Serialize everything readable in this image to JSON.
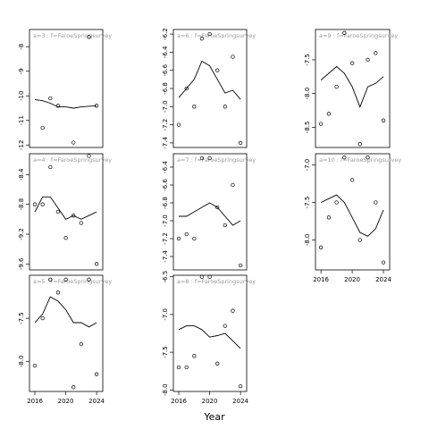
{
  "chart_data": {
    "type": "scatter",
    "xlabel": "Year",
    "x_ticks": [
      2016,
      2020,
      2024
    ],
    "panels": [
      {
        "title": "a=3 : f=FaroeSpringsurvey",
        "ylim": [
          -12.1,
          -7.3
        ],
        "y_ticks": [
          -8,
          -9,
          -10,
          -11,
          -12
        ],
        "points": [
          [
            2017,
            -11.3
          ],
          [
            2018,
            -10.1
          ],
          [
            2019,
            -10.4
          ],
          [
            2021,
            -11.9
          ],
          [
            2023,
            -7.6
          ],
          [
            2024,
            -10.4
          ]
        ],
        "fit": [
          [
            2016,
            -10.15
          ],
          [
            2017,
            -10.2
          ],
          [
            2018,
            -10.3
          ],
          [
            2019,
            -10.45
          ],
          [
            2020,
            -10.45
          ],
          [
            2021,
            -10.5
          ],
          [
            2022,
            -10.45
          ],
          [
            2024,
            -10.4
          ]
        ]
      },
      {
        "title": "a=6 : f=FaroeSpringsurvey",
        "ylim": [
          -7.45,
          -6.15
        ],
        "y_ticks": [
          -6.2,
          -6.4,
          -6.6,
          -6.8,
          -7.0,
          -7.2,
          -7.4
        ],
        "points": [
          [
            2016,
            -7.2
          ],
          [
            2017,
            -6.8
          ],
          [
            2018,
            -7.0
          ],
          [
            2019,
            -6.25
          ],
          [
            2020,
            -6.2
          ],
          [
            2021,
            -6.6
          ],
          [
            2022,
            -7.0
          ],
          [
            2023,
            -6.45
          ],
          [
            2024,
            -7.4
          ]
        ],
        "fit": [
          [
            2016,
            -6.9
          ],
          [
            2017,
            -6.8
          ],
          [
            2018,
            -6.7
          ],
          [
            2019,
            -6.5
          ],
          [
            2020,
            -6.55
          ],
          [
            2021,
            -6.7
          ],
          [
            2022,
            -6.85
          ],
          [
            2023,
            -6.82
          ],
          [
            2024,
            -6.92
          ]
        ]
      },
      {
        "title": "a=9 : f=FaroeSpringsurvey",
        "ylim": [
          -8.8,
          -7.05
        ],
        "y_ticks": [
          -7.5,
          -8.0,
          -8.5
        ],
        "points": [
          [
            2016,
            -8.45
          ],
          [
            2017,
            -8.3
          ],
          [
            2018,
            -7.9
          ],
          [
            2019,
            -7.1
          ],
          [
            2020,
            -7.55
          ],
          [
            2021,
            -8.75
          ],
          [
            2022,
            -7.5
          ],
          [
            2023,
            -7.4
          ],
          [
            2024,
            -8.4
          ]
        ],
        "fit": [
          [
            2016,
            -7.8
          ],
          [
            2017,
            -7.7
          ],
          [
            2018,
            -7.6
          ],
          [
            2019,
            -7.7
          ],
          [
            2020,
            -7.9
          ],
          [
            2021,
            -8.2
          ],
          [
            2022,
            -7.9
          ],
          [
            2023,
            -7.85
          ],
          [
            2024,
            -7.75
          ]
        ]
      },
      {
        "title": "a=4 : f=FaroeSpringsurvey",
        "ylim": [
          -9.68,
          -8.12
        ],
        "y_ticks": [
          -8.4,
          -8.8,
          -9.2,
          -9.6
        ],
        "points": [
          [
            2016,
            -8.8
          ],
          [
            2017,
            -8.8
          ],
          [
            2018,
            -8.3
          ],
          [
            2019,
            -8.9
          ],
          [
            2020,
            -9.25
          ],
          [
            2021,
            -8.95
          ],
          [
            2022,
            -9.05
          ],
          [
            2023,
            -8.15
          ],
          [
            2024,
            -9.6
          ]
        ],
        "fit": [
          [
            2016,
            -8.9
          ],
          [
            2017,
            -8.7
          ],
          [
            2018,
            -8.7
          ],
          [
            2019,
            -8.85
          ],
          [
            2020,
            -9.0
          ],
          [
            2021,
            -8.95
          ],
          [
            2022,
            -9.0
          ],
          [
            2023,
            -8.95
          ],
          [
            2024,
            -8.9
          ]
        ]
      },
      {
        "title": "a=7 : f=FaroeSpringsurvey",
        "ylim": [
          -7.55,
          -6.25
        ],
        "y_ticks": [
          -6.4,
          -6.6,
          -6.8,
          -7.0,
          -7.2,
          -7.4
        ],
        "points": [
          [
            2016,
            -7.2
          ],
          [
            2017,
            -7.15
          ],
          [
            2018,
            -7.2
          ],
          [
            2019,
            -6.3
          ],
          [
            2020,
            -6.3
          ],
          [
            2021,
            -6.85
          ],
          [
            2022,
            -7.05
          ],
          [
            2023,
            -6.6
          ],
          [
            2024,
            -7.5
          ]
        ],
        "fit": [
          [
            2016,
            -6.95
          ],
          [
            2017,
            -6.95
          ],
          [
            2018,
            -6.9
          ],
          [
            2019,
            -6.85
          ],
          [
            2020,
            -6.8
          ],
          [
            2021,
            -6.85
          ],
          [
            2022,
            -6.95
          ],
          [
            2023,
            -7.05
          ],
          [
            2024,
            -7.0
          ]
        ]
      },
      {
        "title": "a=10 : f=FaroeSpringsurvey",
        "ylim": [
          -8.4,
          -6.85
        ],
        "y_ticks": [
          -7.0,
          -7.5,
          -8.0
        ],
        "points": [
          [
            2016,
            -8.1
          ],
          [
            2017,
            -7.7
          ],
          [
            2018,
            -7.5
          ],
          [
            2019,
            -6.9
          ],
          [
            2020,
            -7.2
          ],
          [
            2021,
            -8.0
          ],
          [
            2022,
            -6.9
          ],
          [
            2023,
            -7.5
          ],
          [
            2024,
            -8.3
          ]
        ],
        "fit": [
          [
            2016,
            -7.5
          ],
          [
            2017,
            -7.45
          ],
          [
            2018,
            -7.4
          ],
          [
            2019,
            -7.5
          ],
          [
            2020,
            -7.7
          ],
          [
            2021,
            -7.9
          ],
          [
            2022,
            -7.95
          ],
          [
            2023,
            -7.85
          ],
          [
            2024,
            -7.6
          ]
        ]
      },
      {
        "title": "a=5 : f=FaroeSpringsurvey",
        "ylim": [
          -8.35,
          -7.0
        ],
        "y_ticks": [
          -7.5,
          -8.0
        ],
        "points": [
          [
            2016,
            -8.05
          ],
          [
            2017,
            -7.5
          ],
          [
            2018,
            -7.05
          ],
          [
            2019,
            -7.2
          ],
          [
            2020,
            -7.05
          ],
          [
            2021,
            -8.3
          ],
          [
            2022,
            -7.8
          ],
          [
            2023,
            -7.05
          ],
          [
            2024,
            -8.15
          ]
        ],
        "fit": [
          [
            2016,
            -7.55
          ],
          [
            2017,
            -7.45
          ],
          [
            2018,
            -7.25
          ],
          [
            2019,
            -7.3
          ],
          [
            2020,
            -7.4
          ],
          [
            2021,
            -7.55
          ],
          [
            2022,
            -7.55
          ],
          [
            2023,
            -7.6
          ],
          [
            2024,
            -7.55
          ]
        ]
      },
      {
        "title": "a=8 : f=FaroeSpringsurvey",
        "ylim": [
          -8.02,
          -6.48
        ],
        "y_ticks": [
          -6.5,
          -7.0,
          -7.5,
          -8.0
        ],
        "points": [
          [
            2016,
            -7.7
          ],
          [
            2017,
            -7.7
          ],
          [
            2018,
            -7.55
          ],
          [
            2019,
            -6.5
          ],
          [
            2020,
            -6.5
          ],
          [
            2021,
            -7.65
          ],
          [
            2022,
            -7.15
          ],
          [
            2023,
            -6.95
          ],
          [
            2024,
            -7.95
          ]
        ],
        "fit": [
          [
            2016,
            -7.2
          ],
          [
            2017,
            -7.15
          ],
          [
            2018,
            -7.15
          ],
          [
            2019,
            -7.2
          ],
          [
            2020,
            -7.3
          ],
          [
            2021,
            -7.28
          ],
          [
            2022,
            -7.25
          ],
          [
            2023,
            -7.35
          ],
          [
            2024,
            -7.45
          ]
        ]
      }
    ]
  }
}
